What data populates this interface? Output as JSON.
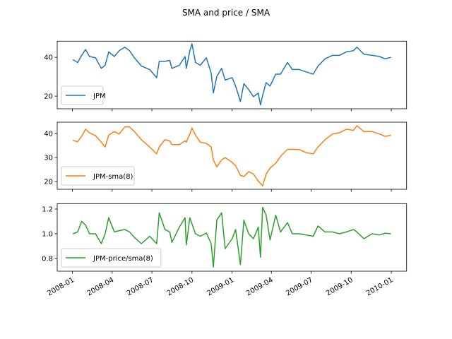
{
  "chart_data": [
    {
      "type": "line",
      "title": "SMA and price / SMA",
      "xlim": [
        "2007-11-27",
        "2010-02-05"
      ],
      "ylim": [
        13.5,
        48.3
      ],
      "yticks": [
        20,
        40
      ],
      "xticks": [
        "2008-01",
        "2008-04",
        "2008-07",
        "2008-10",
        "2009-01",
        "2009-04",
        "2009-07",
        "2009-10",
        "2010-01"
      ],
      "legend": "lower-left",
      "grid": false,
      "series": [
        {
          "name": "JPM",
          "color": "#1f77b4",
          "x": [
            "2008-01-02",
            "2008-01-13",
            "2008-01-22",
            "2008-01-31",
            "2008-02-09",
            "2008-02-23",
            "2008-03-07",
            "2008-03-16",
            "2008-03-24",
            "2008-04-06",
            "2008-04-17",
            "2008-04-30",
            "2008-05-11",
            "2008-05-22",
            "2008-06-07",
            "2008-06-26",
            "2008-07-12",
            "2008-07-18",
            "2008-07-31",
            "2008-08-11",
            "2008-08-16",
            "2008-09-02",
            "2008-09-15",
            "2008-09-18",
            "2008-09-26",
            "2008-10-01",
            "2008-10-09",
            "2008-10-20",
            "2008-11-03",
            "2008-11-14",
            "2008-11-19",
            "2008-11-27",
            "2008-12-08",
            "2008-12-16",
            "2009-01-01",
            "2009-01-09",
            "2009-01-20",
            "2009-01-28",
            "2009-02-08",
            "2009-02-19",
            "2009-03-02",
            "2009-03-07",
            "2009-03-12",
            "2009-03-20",
            "2009-03-29",
            "2009-04-11",
            "2009-04-22",
            "2009-05-08",
            "2009-05-19",
            "2009-06-04",
            "2009-06-20",
            "2009-07-06",
            "2009-07-17",
            "2009-08-02",
            "2009-08-19",
            "2009-09-04",
            "2009-09-20",
            "2009-10-06",
            "2009-10-14",
            "2009-10-30",
            "2009-11-18",
            "2009-12-05",
            "2009-12-18",
            "2009-12-31"
          ],
          "values": [
            38.8,
            37.3,
            41,
            44,
            40.4,
            39.7,
            34.3,
            35.9,
            42.8,
            40.4,
            43.4,
            45.2,
            43.4,
            39.7,
            35.5,
            33.7,
            29.5,
            37.9,
            37.9,
            38.4,
            34.3,
            35.9,
            40.4,
            34.3,
            43.4,
            47,
            37.3,
            35.9,
            39.7,
            31.9,
            21.6,
            30.1,
            34.3,
            28.3,
            29.5,
            25.2,
            17.3,
            26.4,
            23.4,
            19.7,
            21.6,
            15.5,
            20.4,
            27,
            25.2,
            31.3,
            31.3,
            37.3,
            33.7,
            33.7,
            32.5,
            31.3,
            35.5,
            39.2,
            41,
            41,
            42.8,
            43.4,
            45.2,
            41.6,
            41,
            40.4,
            39.2,
            40
          ]
        }
      ]
    },
    {
      "type": "line",
      "xlim": [
        "2007-11-27",
        "2010-02-05"
      ],
      "ylim": [
        16.8,
        44.7
      ],
      "yticks": [
        20,
        30,
        40
      ],
      "xticks": [
        "2008-01",
        "2008-04",
        "2008-07",
        "2008-10",
        "2009-01",
        "2009-04",
        "2009-07",
        "2009-10",
        "2010-01"
      ],
      "legend": "lower-left",
      "grid": false,
      "series": [
        {
          "name": "JPM-sma(8)",
          "color": "#ff7f0e",
          "values": [
            37.1,
            36.6,
            38.8,
            41.8,
            40.3,
            39.1,
            36.4,
            34.4,
            39.3,
            40.8,
            39.8,
            42.7,
            42.7,
            40.8,
            37.4,
            34.4,
            31.5,
            34.4,
            37.4,
            36.9,
            35.4,
            35.4,
            36.9,
            36.4,
            39.8,
            42.3,
            39.3,
            36.4,
            35.9,
            34.4,
            29,
            26.1,
            29,
            30,
            28,
            26.6,
            22.6,
            22.1,
            24.1,
            23.1,
            20.2,
            19.2,
            18.2,
            23.1,
            25.6,
            27.6,
            30.5,
            33.4,
            33.4,
            33.3,
            32,
            31.5,
            34.4,
            37.4,
            39.8,
            40.3,
            41.8,
            41.3,
            43.2,
            40.8,
            40.8,
            39.8,
            38.8,
            39.3
          ]
        }
      ]
    },
    {
      "type": "line",
      "xlim": [
        "2007-11-27",
        "2010-02-05"
      ],
      "ylim": [
        0.697,
        1.244
      ],
      "yticks": [
        0.8,
        1.0,
        1.2
      ],
      "ytick_labels": [
        "0.8",
        "1.0",
        "1.2"
      ],
      "xticks": [
        "2008-01",
        "2008-04",
        "2008-07",
        "2008-10",
        "2009-01",
        "2009-04",
        "2009-07",
        "2009-10",
        "2010-01"
      ],
      "legend": "lower-left",
      "grid": false,
      "series": [
        {
          "name": "JPM-price/sma(8)",
          "color": "#2ca02c",
          "values": [
            1.0,
            1.015,
            1.1,
            1.07,
            1.0,
            1.0,
            0.92,
            1.0,
            1.13,
            1.015,
            1.025,
            1.035,
            1.015,
            0.97,
            0.92,
            0.98,
            0.92,
            1.17,
            1.035,
            1.015,
            0.93,
            1.053,
            1.13,
            0.91,
            1.13,
            1.08,
            1.0,
            0.98,
            1.005,
            0.92,
            0.73,
            1.11,
            1.17,
            0.88,
            0.96,
            1.035,
            0.75,
            1.11,
            1.0,
            0.96,
            1.053,
            0.81,
            1.215,
            1.15,
            0.95,
            1.15,
            1.015,
            1.09,
            1.0,
            1.0,
            0.99,
            0.98,
            1.063,
            1.015,
            1.015,
            1.0,
            1.015,
            1.035,
            1.015,
            0.96,
            1.0,
            0.99,
            1.005,
            1.0
          ]
        }
      ]
    }
  ]
}
